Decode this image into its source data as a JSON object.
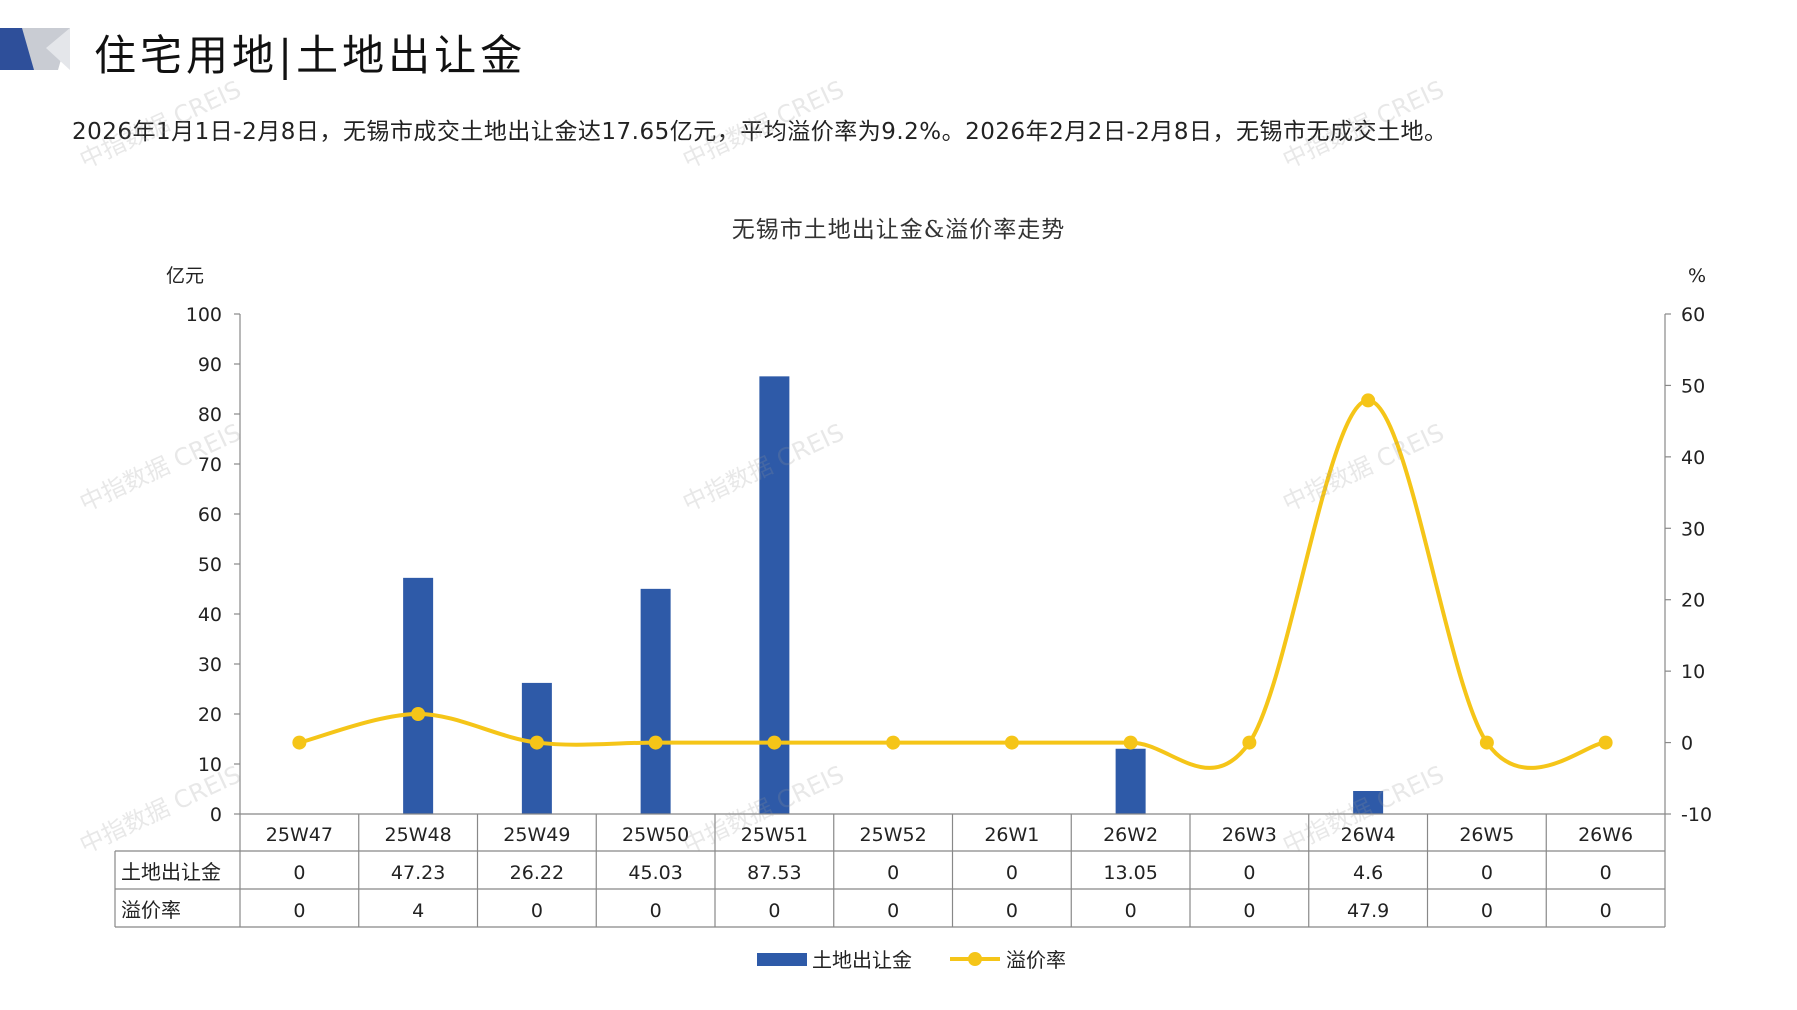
{
  "header": {
    "title": "住宅用地|土地出让金",
    "summary": "2026年1月1日-2月8日，无锡市成交土地出让金达17.65亿元，平均溢价率为9.2%。2026年2月2日-2月8日，无锡市无成交土地。"
  },
  "watermark": "中指数据 CREIS",
  "colors": {
    "bar": "#2E5AA8",
    "line": "#F5C518",
    "deco_dark": "#2E4F9A",
    "deco_light": "#C9CCD3"
  },
  "chart_data": {
    "type": "bar",
    "title": "无锡市土地出让金&溢价率走势",
    "y_left_label": "亿元",
    "y_right_label": "%",
    "y_left_range": [
      0,
      100
    ],
    "y_left_ticks": [
      "0",
      "10",
      "20",
      "30",
      "40",
      "50",
      "60",
      "70",
      "80",
      "90",
      "100"
    ],
    "y_right_range": [
      -10,
      60
    ],
    "y_right_ticks": [
      "-10",
      "0",
      "10",
      "20",
      "30",
      "40",
      "50",
      "60"
    ],
    "categories": [
      "25W47",
      "25W48",
      "25W49",
      "25W50",
      "25W51",
      "25W52",
      "26W1",
      "26W2",
      "26W3",
      "26W4",
      "26W5",
      "26W6"
    ],
    "series": [
      {
        "name": "土地出让金",
        "type": "bar",
        "axis": "left",
        "values": [
          0,
          47.23,
          26.22,
          45.03,
          87.53,
          0,
          0,
          13.05,
          0,
          4.6,
          0,
          0
        ],
        "labels": [
          "0",
          "47.23",
          "26.22",
          "45.03",
          "87.53",
          "0",
          "0",
          "13.05",
          "0",
          "4.6",
          "0",
          "0"
        ]
      },
      {
        "name": "溢价率",
        "type": "line",
        "axis": "right",
        "values": [
          0,
          4,
          0,
          0,
          0,
          0,
          0,
          0,
          0,
          47.9,
          0,
          0
        ],
        "labels": [
          "0",
          "4",
          "0",
          "0",
          "0",
          "0",
          "0",
          "0",
          "0",
          "47.9",
          "0",
          "0"
        ]
      }
    ],
    "legend_position": "bottom",
    "data_table": true,
    "grid": false
  }
}
